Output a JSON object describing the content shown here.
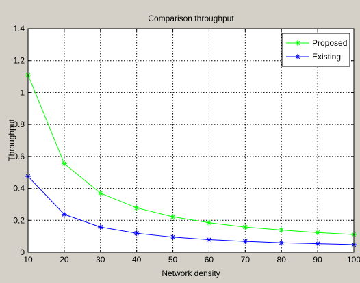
{
  "window": {
    "background": "#d4d0c8"
  },
  "chart_data": {
    "type": "line",
    "title": "Comparison throughput",
    "xlabel": "Network density",
    "ylabel": "Throughput",
    "xlim": [
      10,
      100
    ],
    "ylim": [
      0,
      1.4
    ],
    "x": [
      10,
      20,
      30,
      40,
      50,
      60,
      70,
      80,
      90,
      100
    ],
    "x_ticks": [
      "10",
      "20",
      "30",
      "40",
      "50",
      "60",
      "70",
      "80",
      "90",
      "100"
    ],
    "y_ticks": [
      "0",
      "0.2",
      "0.4",
      "0.6",
      "0.8",
      "1",
      "1.2",
      "1.4"
    ],
    "y_tick_values": [
      0,
      0.2,
      0.4,
      0.6,
      0.8,
      1.0,
      1.2,
      1.4
    ],
    "grid": true,
    "legend_position": "top-right",
    "series": [
      {
        "name": "Proposed",
        "color": "#00ff00",
        "marker": "asterisk",
        "values": [
          1.11,
          0.555,
          0.37,
          0.278,
          0.222,
          0.185,
          0.158,
          0.139,
          0.123,
          0.111
        ]
      },
      {
        "name": "Existing",
        "color": "#0000ff",
        "marker": "asterisk",
        "values": [
          0.475,
          0.237,
          0.158,
          0.119,
          0.095,
          0.079,
          0.068,
          0.059,
          0.053,
          0.047
        ]
      }
    ]
  }
}
